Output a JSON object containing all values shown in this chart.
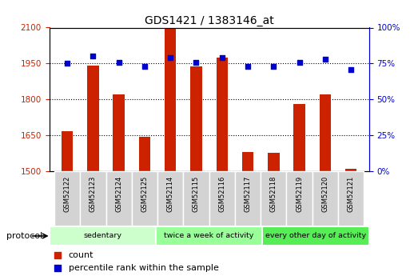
{
  "title": "GDS1421 / 1383146_at",
  "samples": [
    "GSM52122",
    "GSM52123",
    "GSM52124",
    "GSM52125",
    "GSM52114",
    "GSM52115",
    "GSM52116",
    "GSM52117",
    "GSM52118",
    "GSM52119",
    "GSM52120",
    "GSM52121"
  ],
  "counts": [
    1668,
    1940,
    1820,
    1645,
    2100,
    1938,
    1975,
    1580,
    1578,
    1782,
    1820,
    1510
  ],
  "percentiles": [
    75,
    80,
    76,
    73,
    79,
    76,
    79,
    73,
    73,
    76,
    78,
    71
  ],
  "ylim_left": [
    1500,
    2100
  ],
  "ylim_right": [
    0,
    100
  ],
  "yticks_left": [
    1500,
    1650,
    1800,
    1950,
    2100
  ],
  "yticks_right": [
    0,
    25,
    50,
    75,
    100
  ],
  "bar_color": "#cc2200",
  "dot_color": "#0000cc",
  "grid_color": "#000000",
  "groups": [
    {
      "label": "sedentary",
      "start": 0,
      "end": 4,
      "color": "#ccffcc"
    },
    {
      "label": "twice a week of activity",
      "start": 4,
      "end": 8,
      "color": "#99ff99"
    },
    {
      "label": "every other day of activity",
      "start": 8,
      "end": 12,
      "color": "#55ee55"
    }
  ],
  "protocol_label": "protocol",
  "legend_count_label": "count",
  "legend_pct_label": "percentile rank within the sample",
  "bg_color": "#ffffff",
  "axis_left_color": "#cc2200",
  "axis_right_color": "#0000cc"
}
